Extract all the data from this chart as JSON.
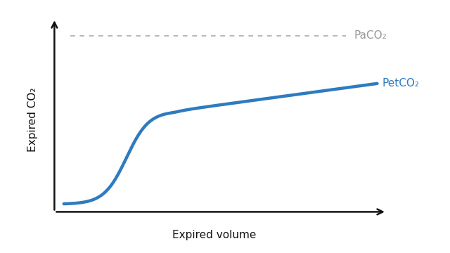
{
  "xlabel": "Expired volume",
  "ylabel": "Expired CO₂",
  "curve_color": "#2e7bbf",
  "curve_linewidth": 3.2,
  "dashed_line_color": "#aaaaaa",
  "paco2_label": "PaCO₂",
  "petco2_label": "PetCO₂",
  "paco2_color": "#999999",
  "petco2_color": "#2e7bbf",
  "background_color": "#ffffff",
  "axis_color": "#111111",
  "xlabel_fontsize": 11,
  "ylabel_fontsize": 11,
  "annotation_fontsize": 11
}
